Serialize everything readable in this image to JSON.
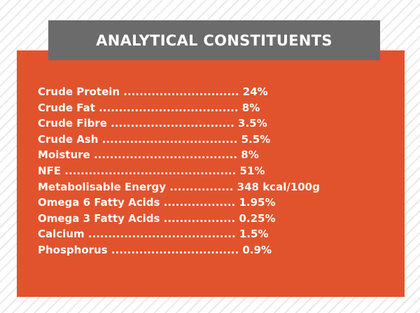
{
  "title": "ANALYTICAL CONSTITUENTS",
  "colors": {
    "panel": "#e1532d",
    "banner": "#6b6b6b",
    "text": "#ffffff"
  },
  "constituents": [
    "Crude Protein ............................. 24%",
    "Crude Fat ................................... 8%",
    "Crude Fibre ............................... 3.5%",
    "Crude Ash .................................. 5.5%",
    "Moisture .................................... 8%",
    "NFE ........................................... 51%",
    "Metabolisable Energy ................ 348 kcal/100g",
    "Omega 6 Fatty Acids .................. 1.95%",
    "Omega 3 Fatty Acids .................. 0.25%",
    "Calcium ..................................... 1.5%",
    "Phosphorus ................................ 0.9%"
  ]
}
